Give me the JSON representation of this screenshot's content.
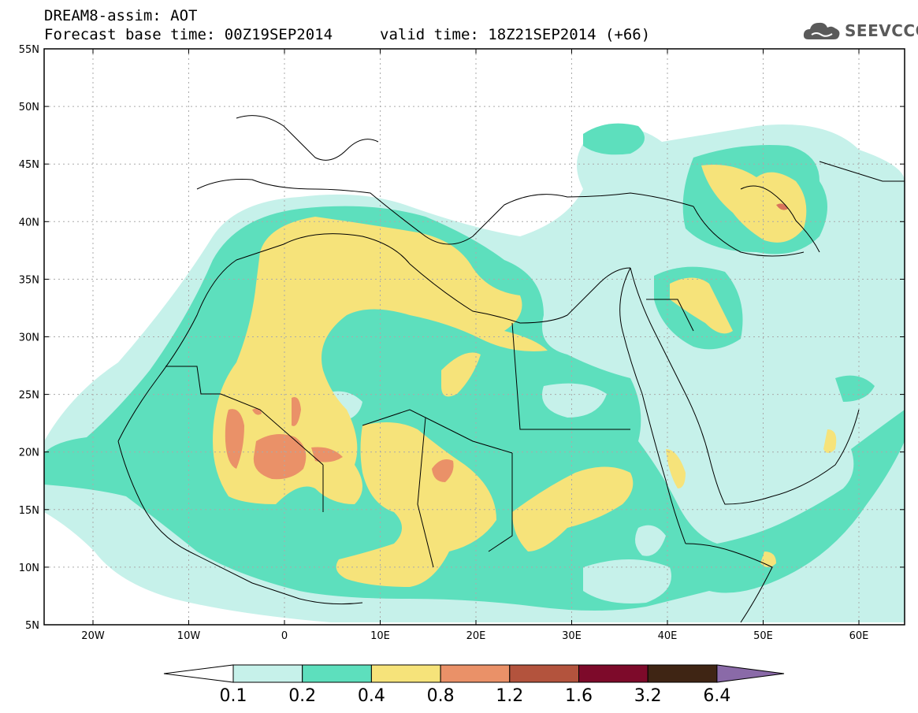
{
  "header": {
    "line1": "DREAM8-assim: AOT",
    "line2_left": "Forecast base time: 00Z19SEP2014",
    "line2_right": "valid time: 18Z21SEP2014 (+66)"
  },
  "logo": {
    "text": "SEEVCCC",
    "icon": "cloud-icon"
  },
  "map": {
    "lat_labels": [
      "55N",
      "50N",
      "45N",
      "40N",
      "35N",
      "30N",
      "25N",
      "20N",
      "15N",
      "10N",
      "5N"
    ],
    "lon_labels": [
      "20W",
      "10W",
      "0",
      "10E",
      "20E",
      "30E",
      "40E",
      "50E",
      "60E"
    ]
  },
  "legend": {
    "labels": [
      "0.1",
      "0.2",
      "0.4",
      "0.8",
      "1.2",
      "1.6",
      "3.2",
      "6.4"
    ],
    "colors": [
      "#ffffff",
      "#c6f1ea",
      "#5ddfbd",
      "#f6e37a",
      "#ea9168",
      "#b3533d",
      "#7d0a2a",
      "#3f2514",
      "#8a6aa8"
    ]
  },
  "colors": {
    "c01": "#c6f1ea",
    "c02": "#5ddfbd",
    "c04": "#f6e37a",
    "c08": "#ea9168",
    "c12": "#d9735b"
  }
}
